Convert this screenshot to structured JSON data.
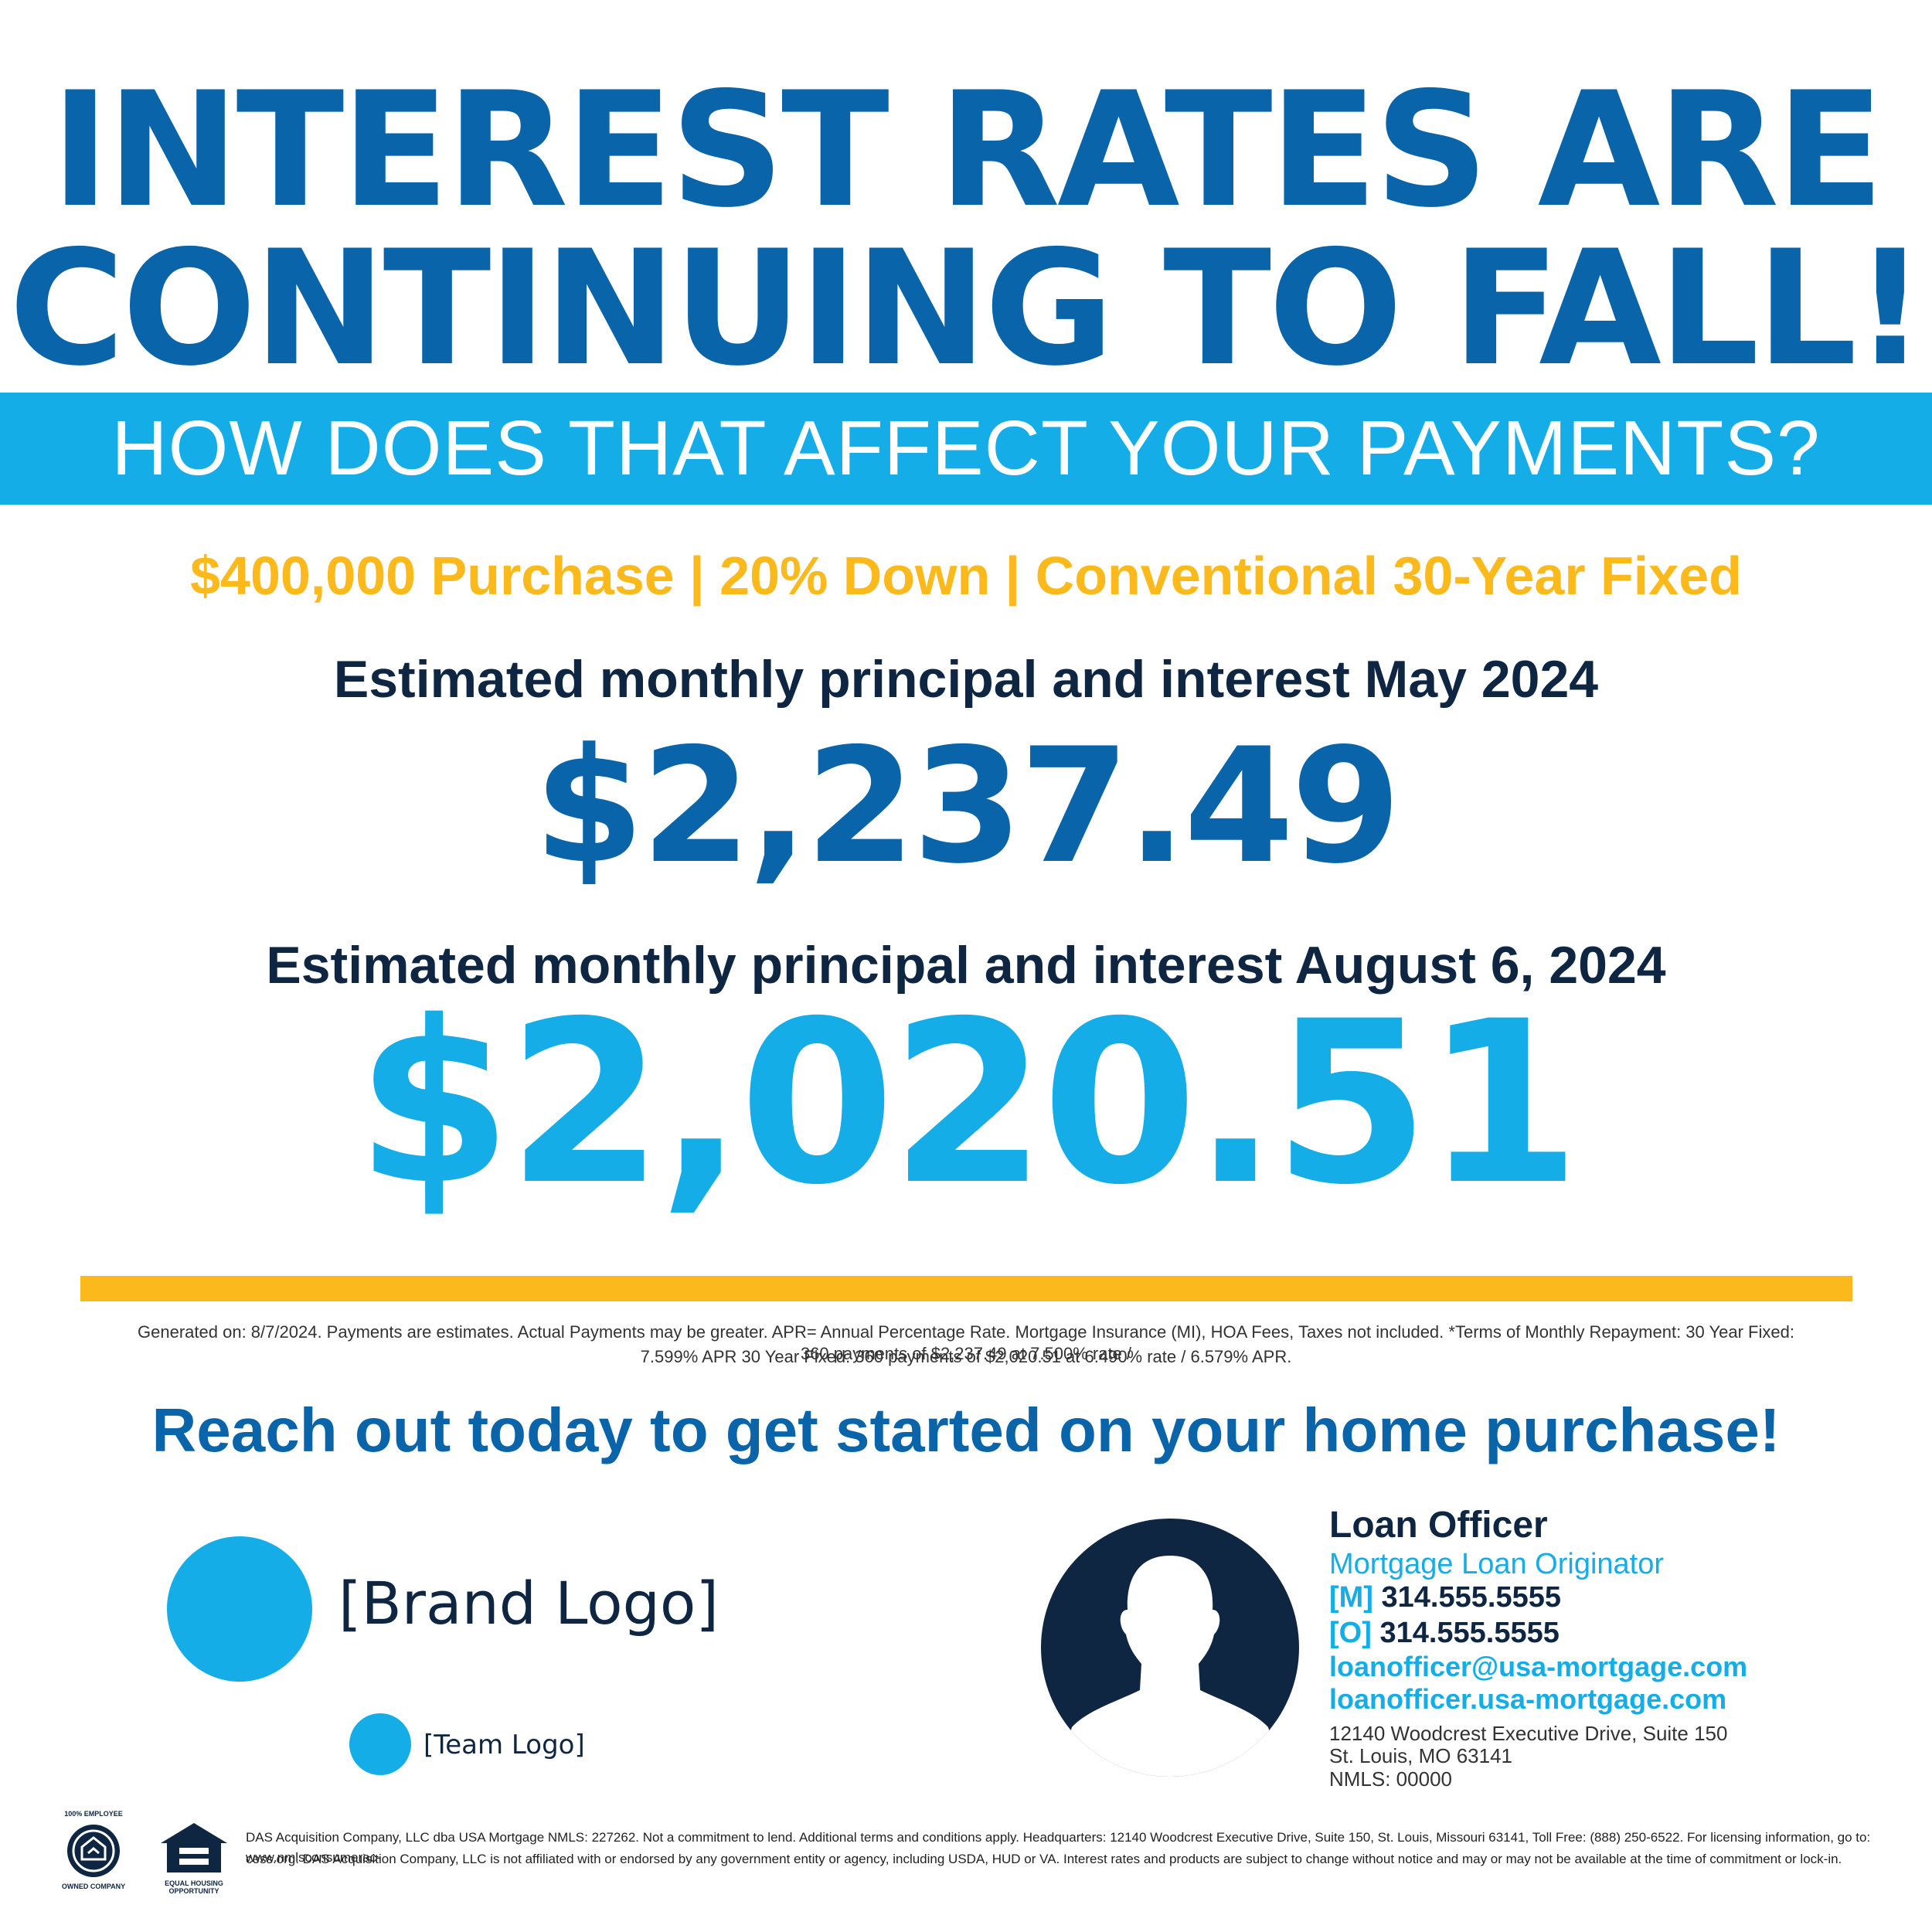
{
  "headline": {
    "line1": "INTEREST RATES ARE",
    "line2": "CONTINUING TO FALL!"
  },
  "banner": {
    "text": "HOW DOES THAT AFFECT YOUR PAYMENTS?"
  },
  "loan_terms": "$400,000 Purchase | 20% Down | Conventional 30-Year Fixed",
  "payment_may": {
    "label": "Estimated monthly principal and interest May 2024",
    "amount": "$2,237.49"
  },
  "payment_aug": {
    "label": "Estimated monthly principal and interest August 6, 2024",
    "amount": "$2,020.51"
  },
  "disclaimer": {
    "line1": "Generated on: 8/7/2024. Payments are estimates. Actual Payments may be greater. APR= Annual Percentage Rate. Mortgage Insurance (MI), HOA Fees, Taxes not included. *Terms of Monthly Repayment: 30 Year Fixed: 360 payments of $2,237.49 at 7.500% rate /",
    "line2": "7.599% APR  30 Year Fixed: 360 payments of $2,020.51 at 6.490% rate / 6.579% APR."
  },
  "cta": "Reach out today to get started on your home purchase!",
  "brand_logo": "[Brand Logo]",
  "team_logo": "[Team Logo]",
  "loan_officer": {
    "name": "Loan Officer",
    "title": "Mortgage Loan Originator",
    "mobile_tag": "[M]",
    "mobile": "314.555.5555",
    "office_tag": "[O]",
    "office": "314.555.5555",
    "email": "loanofficer@usa-mortgage.com",
    "website": "loanofficer.usa-mortgage.com",
    "address1": "12140 Woodcrest Executive Drive, Suite 150",
    "address2": "St. Louis, MO 63141",
    "nmls": "NMLS: 00000"
  },
  "badges": {
    "employee_owned_top": "100% EMPLOYEE",
    "employee_owned_bottom": "OWNED COMPANY",
    "equal_housing_1": "EQUAL HOUSING",
    "equal_housing_2": "OPPORTUNITY"
  },
  "legal": {
    "line1": "DAS Acquisition Company, LLC dba USA Mortgage NMLS: 227262. Not a commitment to lend. Additional terms and conditions apply. Headquarters: 12140 Woodcrest Executive Drive, Suite 150, St. Louis, Missouri 63141, Toll Free: (888) 250-6522. For licensing information, go to: www.nmlsconsumerac-",
    "line2": "cess.org. DAS Acquisition Company, LLC is not affiliated with or endorsed by any government entity or agency, including USDA, HUD or VA. Interest rates and products are subject to change without notice and may or may not be available at the time of commitment or lock-in."
  },
  "colors": {
    "dark_blue": "#0a64aa",
    "light_blue": "#15ade8",
    "gold": "#fbb91b",
    "navy": "#0f2643"
  }
}
